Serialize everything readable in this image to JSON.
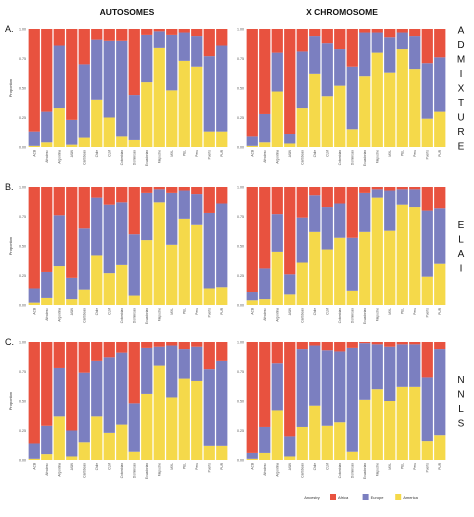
{
  "column_titles": [
    "AUTOSOMES",
    "X CHROMOSOME"
  ],
  "row_labels": [
    "A.",
    "B.",
    "C."
  ],
  "method_labels": [
    "ADMIXTURE",
    "ELAI",
    "NNLS"
  ],
  "y_axis_label": "Proportion",
  "legend": {
    "title": "Ancestry",
    "items": [
      {
        "name": "Africa",
        "color": "#e8523f"
      },
      {
        "name": "Europe",
        "color": "#7b7fc0"
      },
      {
        "name": "America",
        "color": "#f5d94a"
      }
    ]
  },
  "chart_data": [
    {
      "type": "bar",
      "stacked": true,
      "title": "AUTOSOMES",
      "panel": "A.",
      "method": "ADMIXTURE",
      "ylabel": "Proportion",
      "ylim": [
        0,
        1
      ],
      "yticks": [
        "0.00",
        "0.25",
        "0.50",
        "0.75",
        "1.00"
      ],
      "categories": [
        "ACB",
        "Afrodesc",
        "Argentina",
        "ASW",
        "Caribbean",
        "Chile",
        "CLM",
        "Colombian",
        "Dominican",
        "Ecuadorian",
        "Mapuche",
        "MXL",
        "PEL",
        "Peru",
        "Puerto",
        "PUR"
      ],
      "series": [
        {
          "name": "America",
          "values": [
            0.01,
            0.04,
            0.33,
            0.02,
            0.08,
            0.4,
            0.25,
            0.09,
            0.06,
            0.55,
            0.84,
            0.48,
            0.73,
            0.68,
            0.13,
            0.13
          ]
        },
        {
          "name": "Europe",
          "values": [
            0.12,
            0.26,
            0.53,
            0.21,
            0.62,
            0.51,
            0.65,
            0.81,
            0.38,
            0.4,
            0.14,
            0.47,
            0.24,
            0.26,
            0.64,
            0.73
          ]
        },
        {
          "name": "Africa",
          "values": [
            0.87,
            0.7,
            0.14,
            0.77,
            0.3,
            0.09,
            0.1,
            0.1,
            0.56,
            0.05,
            0.02,
            0.05,
            0.03,
            0.06,
            0.23,
            0.14
          ]
        }
      ]
    },
    {
      "type": "bar",
      "stacked": true,
      "title": "X CHROMOSOME",
      "panel": "A.",
      "method": "ADMIXTURE",
      "ylabel": "",
      "ylim": [
        0,
        1
      ],
      "yticks": [
        "0.00",
        "0.25",
        "0.50",
        "0.75",
        "1.00"
      ],
      "categories": [
        "ACB",
        "Afrodesc",
        "Argentina",
        "ASW",
        "Caribbean",
        "Chile",
        "CLM",
        "Colombian",
        "Dominican",
        "Ecuadorian",
        "Mapuche",
        "MXL",
        "PEL",
        "Peru",
        "Puerto",
        "PUR"
      ],
      "series": [
        {
          "name": "America",
          "values": [
            0.01,
            0.04,
            0.47,
            0.03,
            0.33,
            0.62,
            0.43,
            0.52,
            0.15,
            0.6,
            0.8,
            0.63,
            0.83,
            0.66,
            0.24,
            0.3
          ]
        },
        {
          "name": "Europe",
          "values": [
            0.08,
            0.24,
            0.33,
            0.08,
            0.48,
            0.32,
            0.45,
            0.31,
            0.53,
            0.37,
            0.17,
            0.3,
            0.14,
            0.28,
            0.47,
            0.46
          ]
        },
        {
          "name": "Africa",
          "values": [
            0.91,
            0.72,
            0.2,
            0.89,
            0.19,
            0.06,
            0.12,
            0.17,
            0.32,
            0.03,
            0.03,
            0.07,
            0.03,
            0.06,
            0.29,
            0.24
          ]
        }
      ]
    },
    {
      "type": "bar",
      "stacked": true,
      "title": "AUTOSOMES",
      "panel": "B.",
      "method": "ELAI",
      "ylabel": "Proportion",
      "ylim": [
        0,
        1
      ],
      "yticks": [
        "0.00",
        "0.25",
        "0.50",
        "0.75",
        "1.00"
      ],
      "categories": [
        "ACB",
        "Afrodesc",
        "Argentina",
        "ASW",
        "Caribbean",
        "Chile",
        "CLM",
        "Colombian",
        "Dominican",
        "Ecuadorian",
        "Mapuche",
        "MXL",
        "PEL",
        "Peru",
        "Puerto",
        "PUR"
      ],
      "series": [
        {
          "name": "America",
          "values": [
            0.02,
            0.06,
            0.33,
            0.05,
            0.13,
            0.42,
            0.27,
            0.34,
            0.08,
            0.55,
            0.87,
            0.51,
            0.73,
            0.68,
            0.14,
            0.15
          ]
        },
        {
          "name": "Europe",
          "values": [
            0.12,
            0.22,
            0.43,
            0.18,
            0.52,
            0.49,
            0.58,
            0.53,
            0.52,
            0.4,
            0.11,
            0.44,
            0.24,
            0.26,
            0.64,
            0.71
          ]
        },
        {
          "name": "Africa",
          "values": [
            0.86,
            0.72,
            0.24,
            0.77,
            0.35,
            0.09,
            0.15,
            0.13,
            0.4,
            0.05,
            0.02,
            0.05,
            0.03,
            0.06,
            0.22,
            0.14
          ]
        }
      ]
    },
    {
      "type": "bar",
      "stacked": true,
      "title": "X CHROMOSOME",
      "panel": "B.",
      "method": "ELAI",
      "ylabel": "",
      "ylim": [
        0,
        1
      ],
      "yticks": [
        "0.00",
        "0.25",
        "0.50",
        "0.75",
        "1.00"
      ],
      "categories": [
        "ACB",
        "Afrodesc",
        "Argentina",
        "ASW",
        "Caribbean",
        "Chile",
        "CLM",
        "Colombian",
        "Dominican",
        "Ecuadorian",
        "Mapuche",
        "MXL",
        "PEL",
        "Peru",
        "Puerto",
        "PUR"
      ],
      "series": [
        {
          "name": "America",
          "values": [
            0.04,
            0.05,
            0.45,
            0.09,
            0.36,
            0.62,
            0.47,
            0.57,
            0.12,
            0.62,
            0.91,
            0.63,
            0.85,
            0.83,
            0.24,
            0.35
          ]
        },
        {
          "name": "Europe",
          "values": [
            0.07,
            0.26,
            0.32,
            0.17,
            0.38,
            0.31,
            0.36,
            0.29,
            0.45,
            0.33,
            0.07,
            0.34,
            0.13,
            0.15,
            0.56,
            0.47
          ]
        },
        {
          "name": "Africa",
          "values": [
            0.89,
            0.69,
            0.23,
            0.74,
            0.26,
            0.07,
            0.17,
            0.14,
            0.43,
            0.05,
            0.02,
            0.03,
            0.02,
            0.02,
            0.2,
            0.18
          ]
        }
      ]
    },
    {
      "type": "bar",
      "stacked": true,
      "title": "AUTOSOMES",
      "panel": "C.",
      "method": "NNLS",
      "ylabel": "Proportion",
      "ylim": [
        0,
        1
      ],
      "yticks": [
        "0.00",
        "0.25",
        "0.50",
        "0.75",
        "1.00"
      ],
      "categories": [
        "ACB",
        "Afrodesc",
        "Argentina",
        "ASW",
        "Caribbean",
        "Chile",
        "CLM",
        "Colombian",
        "Dominican",
        "Ecuadorian",
        "Mapuche",
        "MXL",
        "PEL",
        "Peru",
        "Puerto",
        "PUR"
      ],
      "series": [
        {
          "name": "America",
          "values": [
            0.01,
            0.05,
            0.37,
            0.03,
            0.15,
            0.37,
            0.23,
            0.3,
            0.07,
            0.56,
            0.8,
            0.53,
            0.69,
            0.67,
            0.12,
            0.12
          ]
        },
        {
          "name": "Europe",
          "values": [
            0.13,
            0.24,
            0.41,
            0.22,
            0.59,
            0.47,
            0.64,
            0.61,
            0.41,
            0.39,
            0.16,
            0.44,
            0.25,
            0.29,
            0.65,
            0.72
          ]
        },
        {
          "name": "Africa",
          "values": [
            0.86,
            0.71,
            0.22,
            0.75,
            0.26,
            0.16,
            0.13,
            0.09,
            0.52,
            0.05,
            0.04,
            0.03,
            0.06,
            0.04,
            0.23,
            0.16
          ]
        }
      ]
    },
    {
      "type": "bar",
      "stacked": true,
      "title": "X CHROMOSOME",
      "panel": "C.",
      "method": "NNLS",
      "ylabel": "",
      "ylim": [
        0,
        1
      ],
      "yticks": [
        "0.00",
        "0.25",
        "0.50",
        "0.75",
        "1.00"
      ],
      "categories": [
        "ACB",
        "Afrodesc",
        "Argentina",
        "ASW",
        "Caribbean",
        "Chile",
        "CLM",
        "Colombian",
        "Dominican",
        "Ecuadorian",
        "Mapuche",
        "MXL",
        "PEL",
        "Peru",
        "Puerto",
        "PUR"
      ],
      "series": [
        {
          "name": "America",
          "values": [
            0.01,
            0.06,
            0.42,
            0.03,
            0.28,
            0.46,
            0.29,
            0.32,
            0.07,
            0.51,
            0.6,
            0.5,
            0.62,
            0.62,
            0.16,
            0.21
          ]
        },
        {
          "name": "Europe",
          "values": [
            0.05,
            0.22,
            0.4,
            0.17,
            0.66,
            0.51,
            0.64,
            0.6,
            0.88,
            0.48,
            0.38,
            0.46,
            0.36,
            0.36,
            0.54,
            0.73
          ]
        },
        {
          "name": "Africa",
          "values": [
            0.94,
            0.72,
            0.18,
            0.8,
            0.06,
            0.03,
            0.07,
            0.08,
            0.05,
            0.01,
            0.02,
            0.04,
            0.02,
            0.02,
            0.3,
            0.06
          ]
        }
      ]
    }
  ]
}
